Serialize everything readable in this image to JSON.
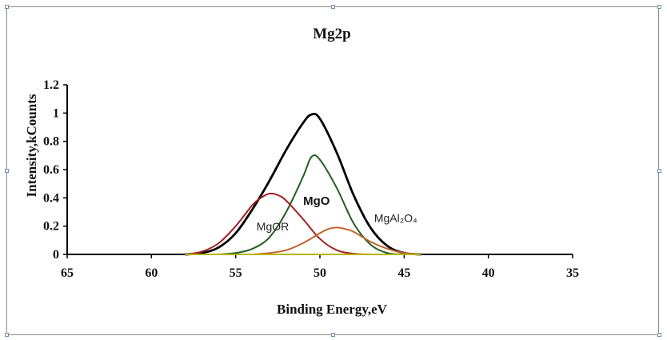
{
  "chart_data": {
    "type": "line",
    "title": "Mg2p",
    "xlabel": "Binding Energy,eV",
    "ylabel": "Intensity,kCounts",
    "xlim": [
      65,
      35
    ],
    "ylim": [
      0,
      1.2
    ],
    "x_ticks": [
      "65",
      "60",
      "55",
      "50",
      "45",
      "40",
      "35"
    ],
    "y_ticks": [
      "0",
      "0.2",
      "0.4",
      "0.6",
      "0.8",
      "1",
      "1.2"
    ],
    "grid": false,
    "x_reversed": true,
    "series": [
      {
        "color": "#000000",
        "x": [
          58,
          57,
          56,
          55,
          54,
          53,
          52,
          51,
          50.5,
          50,
          49,
          48,
          47,
          46,
          45,
          44
        ],
        "values": [
          0,
          0.01,
          0.05,
          0.15,
          0.32,
          0.52,
          0.74,
          0.93,
          0.99,
          0.96,
          0.72,
          0.42,
          0.19,
          0.06,
          0.01,
          0
        ]
      },
      {
        "name": "MgO",
        "color": "#1f5f1f",
        "x": [
          56,
          55,
          54,
          53,
          52,
          51,
          50.5,
          50,
          49,
          48,
          47,
          46,
          45
        ],
        "values": [
          0,
          0.01,
          0.04,
          0.12,
          0.3,
          0.55,
          0.69,
          0.67,
          0.47,
          0.22,
          0.07,
          0.01,
          0
        ]
      },
      {
        "name": "MgOR",
        "color": "#a32020",
        "x": [
          58,
          57,
          56,
          55,
          54,
          53.5,
          53,
          52.5,
          52,
          51,
          50,
          49,
          48,
          47
        ],
        "values": [
          0,
          0.02,
          0.08,
          0.2,
          0.35,
          0.4,
          0.43,
          0.42,
          0.38,
          0.25,
          0.11,
          0.03,
          0.005,
          0
        ]
      },
      {
        "name": "MgAl₂O₄",
        "color": "#c0622a",
        "x": [
          54,
          53,
          52,
          51,
          50,
          49.5,
          49,
          48.5,
          48,
          47,
          46,
          45,
          44
        ],
        "values": [
          0,
          0.01,
          0.03,
          0.08,
          0.15,
          0.18,
          0.19,
          0.18,
          0.16,
          0.09,
          0.04,
          0.01,
          0
        ]
      },
      {
        "color": "#b8b400",
        "x": [
          58,
          44
        ],
        "values": [
          0,
          0
        ]
      }
    ],
    "annotations": [
      {
        "text": "MgO",
        "x": 50.2,
        "y": 0.35
      },
      {
        "text": "MgOR",
        "x": 52.8,
        "y": 0.17
      },
      {
        "text": "MgAl₂O₄",
        "x": 45.5,
        "y": 0.23
      }
    ]
  }
}
